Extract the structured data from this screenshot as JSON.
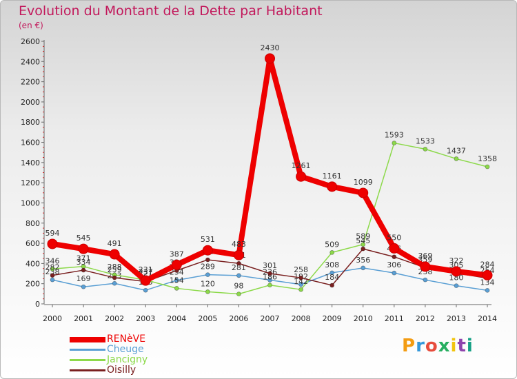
{
  "header": {
    "title": "Evolution du Montant de la Dette par Habitant",
    "subtitle": "(en €)"
  },
  "logo": {
    "text": "Proxiti",
    "colors": [
      "#f39c12",
      "#3498db",
      "#e74c3c",
      "#27ae60",
      "#f1c40f",
      "#8e44ad",
      "#16a085"
    ]
  },
  "legend": {
    "position": "bottom-left"
  },
  "chart_data": {
    "type": "line",
    "title": "Evolution du Montant de la Dette par Habitant",
    "subtitle": "(en €)",
    "xlabel": "",
    "ylabel": "",
    "x": [
      "2000",
      "2001",
      "2002",
      "2003",
      "2004",
      "2005",
      "2006",
      "2007",
      "2008",
      "2009",
      "2010",
      "2011",
      "2012",
      "2013",
      "2014"
    ],
    "ylim": [
      0,
      2600
    ],
    "yticks": [
      0,
      200,
      400,
      600,
      800,
      1000,
      1200,
      1400,
      1600,
      1800,
      2000,
      2200,
      2400,
      2600
    ],
    "grid": false,
    "series": [
      {
        "name": "Cheuge",
        "color": "#5a9fd4",
        "values": [
          238,
          169,
          203,
          135,
          234,
          289,
          281,
          236,
          192,
          308,
          356,
          306,
          238,
          180,
          134
        ],
        "labels": [
          "238",
          "169",
          "203",
          "135",
          "234",
          "289",
          "281",
          "236",
          "192",
          "308",
          "356",
          "306",
          "238",
          "180",
          "134"
        ]
      },
      {
        "name": "Jancigny",
        "color": "#8cd94a",
        "values": [
          346,
          371,
          288,
          237,
          154,
          120,
          98,
          186,
          142,
          509,
          589,
          1593,
          1533,
          1437,
          1358
        ],
        "labels": [
          "346",
          "371",
          "288",
          "237",
          "154",
          "120",
          "98",
          "186",
          "142",
          "509",
          "589",
          "1593",
          "1533",
          "1437",
          "1358"
        ]
      },
      {
        "name": "Oisilly",
        "color": "#7a2020",
        "values": [
          282,
          334,
          259,
          221,
          330,
          437,
          401,
          301,
          258,
          184,
          545,
          466,
          359,
          305,
          254
        ],
        "labels": [
          "282",
          "334",
          "259",
          "221",
          "330",
          "437",
          "401",
          "301",
          "258",
          "184",
          "545",
          "466",
          "359",
          "305",
          "254"
        ]
      },
      {
        "name": "RENèVE",
        "color": "#ee0000",
        "values": [
          594,
          545,
          491,
          231,
          387,
          531,
          483,
          2430,
          1261,
          1161,
          1099,
          550,
          369,
          322,
          284
        ],
        "labels": [
          "594",
          "545",
          "491",
          "231",
          "387",
          "531",
          "483",
          "2430",
          "1261",
          "1161",
          "1099",
          "550",
          "369",
          "322",
          "284"
        ]
      }
    ]
  }
}
